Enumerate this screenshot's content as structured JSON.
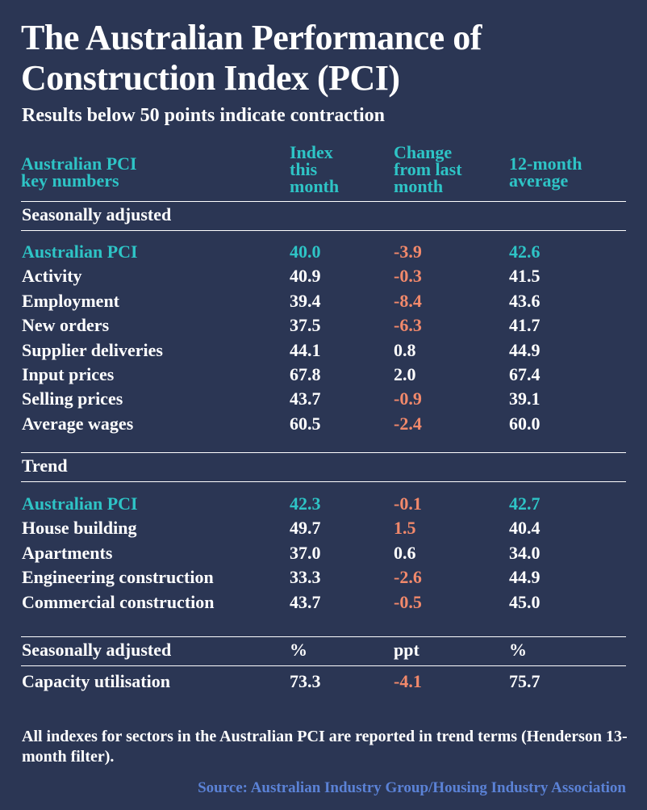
{
  "title": "The Australian Performance of Construction Index (PCI)",
  "subtitle": "Results below 50 points indicate contraction",
  "colors": {
    "background": "#2b3654",
    "accent": "#2ec4c6",
    "negative": "#f2896b",
    "text": "#ffffff",
    "source": "#5b82d6"
  },
  "header": {
    "col0": [
      "Australian PCI",
      "key numbers"
    ],
    "col1": [
      "Index",
      "this",
      "month"
    ],
    "col2": [
      "Change",
      "from last",
      "month"
    ],
    "col3": [
      "12-month",
      "average"
    ]
  },
  "seasonally_adjusted": {
    "label": "Seasonally adjusted",
    "rows": [
      {
        "name": "Australian PCI",
        "index": "40.0",
        "change": "-3.9",
        "avg": "42.6",
        "highlight": true
      },
      {
        "name": "Activity",
        "index": "40.9",
        "change": "-0.3",
        "avg": "41.5"
      },
      {
        "name": "Employment",
        "index": "39.4",
        "change": "-8.4",
        "avg": "43.6"
      },
      {
        "name": "New orders",
        "index": "37.5",
        "change": "-6.3",
        "avg": "41.7"
      },
      {
        "name": "Supplier deliveries",
        "index": "44.1",
        "change": "0.8",
        "avg": "44.9"
      },
      {
        "name": "Input prices",
        "index": "67.8",
        "change": "2.0",
        "avg": "67.4"
      },
      {
        "name": "Selling prices",
        "index": "43.7",
        "change": "-0.9",
        "avg": "39.1"
      },
      {
        "name": "Average wages",
        "index": "60.5",
        "change": "-2.4",
        "avg": "60.0"
      }
    ]
  },
  "trend": {
    "label": "Trend",
    "rows": [
      {
        "name": "Australian PCI",
        "index": "42.3",
        "change": "-0.1",
        "avg": "42.7",
        "highlight": true
      },
      {
        "name": "House building",
        "index": "49.7",
        "change": "1.5",
        "avg": "40.4",
        "change_colored": true
      },
      {
        "name": "Apartments",
        "index": "37.0",
        "change": "0.6",
        "avg": "34.0"
      },
      {
        "name": "Engineering construction",
        "index": "33.3",
        "change": "-2.6",
        "avg": "44.9"
      },
      {
        "name": "Commercial construction",
        "index": "43.7",
        "change": "-0.5",
        "avg": "45.0"
      }
    ]
  },
  "capacity": {
    "header": {
      "label": "Seasonally adjusted",
      "unit1": "%",
      "unit2": "ppt",
      "unit3": "%"
    },
    "row": {
      "name": "Capacity utilisation",
      "index": "73.3",
      "change": "-4.1",
      "avg": "75.7"
    }
  },
  "note": "All indexes for sectors in the Australian PCI are reported in trend terms (Henderson 13-month filter).",
  "source": "Source: Australian Industry Group/Housing Industry Association"
}
